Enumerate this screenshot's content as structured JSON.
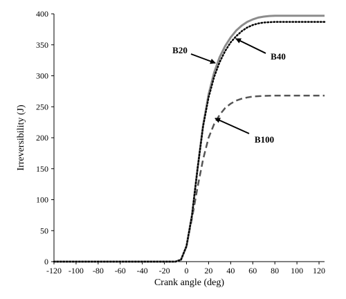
{
  "chart_data": {
    "type": "line",
    "xlabel": "Crank angle (deg)",
    "ylabel": "Irreversibility (J)",
    "xlim": [
      -120,
      125
    ],
    "ylim": [
      0,
      400
    ],
    "xticks": [
      -120,
      -100,
      -80,
      -60,
      -40,
      -20,
      0,
      20,
      40,
      60,
      80,
      100,
      120
    ],
    "yticks": [
      0,
      50,
      100,
      150,
      200,
      250,
      300,
      350,
      400
    ],
    "grid": false,
    "series": [
      {
        "name": "B20",
        "style": "solid",
        "color": "#8c8c8c",
        "x": [
          -120,
          -10,
          -5,
          0,
          5,
          10,
          15,
          20,
          25,
          30,
          35,
          40,
          45,
          50,
          55,
          60,
          65,
          70,
          75,
          80,
          90,
          100,
          110,
          125
        ],
        "y": [
          0,
          0,
          3,
          25,
          75,
          150,
          220,
          270,
          305,
          330,
          348,
          362,
          373,
          381,
          387,
          391,
          394,
          395.5,
          396.5,
          397,
          397,
          397,
          397,
          397
        ]
      },
      {
        "name": "B40",
        "style": "dotted",
        "color": "#000000",
        "x": [
          -120,
          -10,
          -5,
          0,
          5,
          10,
          15,
          20,
          25,
          30,
          35,
          40,
          45,
          50,
          55,
          60,
          65,
          70,
          75,
          80,
          90,
          100,
          110,
          125
        ],
        "y": [
          0,
          0,
          3,
          25,
          75,
          150,
          218,
          265,
          298,
          322,
          340,
          354,
          364,
          372,
          378,
          382,
          384.5,
          386,
          386.5,
          387,
          387,
          387,
          387,
          387
        ]
      },
      {
        "name": "B100",
        "style": "dashed",
        "color": "#555555",
        "x": [
          -120,
          -10,
          -5,
          0,
          5,
          10,
          15,
          20,
          25,
          30,
          35,
          40,
          45,
          50,
          55,
          60,
          65,
          70,
          80,
          90,
          100,
          110,
          125
        ],
        "y": [
          0,
          0,
          3,
          25,
          70,
          120,
          165,
          200,
          222,
          237,
          248,
          255,
          260,
          263,
          265,
          266.5,
          267,
          267.5,
          268,
          268,
          268,
          268,
          268
        ]
      }
    ],
    "annotations": [
      {
        "text": "B20",
        "series": "B20"
      },
      {
        "text": "B40",
        "series": "B40"
      },
      {
        "text": "B100",
        "series": "B100"
      }
    ]
  }
}
